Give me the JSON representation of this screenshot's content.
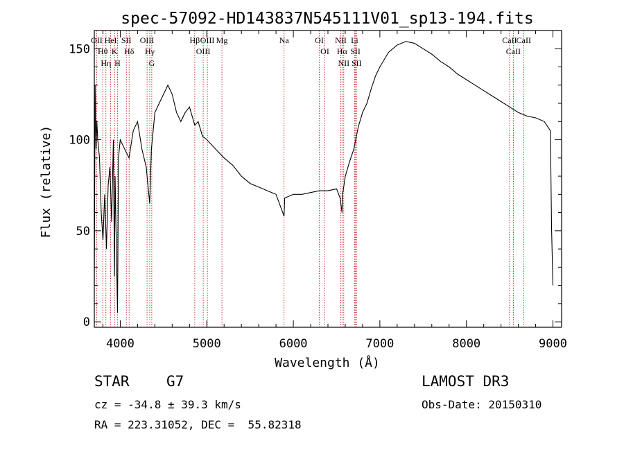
{
  "chart_data": {
    "type": "line",
    "title": "spec-57092-HD143837N545111V01_sp13-194.fits",
    "xlabel": "Wavelength (Å)",
    "ylabel": "Flux (relative)",
    "xlim": [
      3700,
      9100
    ],
    "ylim": [
      -3,
      160
    ],
    "xticks": [
      4000,
      5000,
      6000,
      7000,
      8000,
      9000
    ],
    "xtick_labels": [
      "4000",
      "5000",
      "6000",
      "7000",
      "8000",
      "9000"
    ],
    "yticks": [
      0,
      50,
      100,
      150
    ],
    "ytick_labels": [
      "0",
      "50",
      "100",
      "150"
    ],
    "series": [
      {
        "name": "flux",
        "x": [
          3700,
          3710,
          3720,
          3730,
          3740,
          3760,
          3780,
          3800,
          3820,
          3840,
          3860,
          3880,
          3900,
          3920,
          3933,
          3940,
          3968,
          3980,
          4000,
          4050,
          4101,
          4150,
          4200,
          4250,
          4300,
          4340,
          4360,
          4400,
          4450,
          4500,
          4550,
          4600,
          4650,
          4700,
          4750,
          4800,
          4861,
          4900,
          4950,
          5000,
          5100,
          5200,
          5300,
          5400,
          5500,
          5600,
          5700,
          5800,
          5893,
          5900,
          6000,
          6100,
          6200,
          6300,
          6400,
          6500,
          6540,
          6563,
          6570,
          6600,
          6650,
          6700,
          6750,
          6800,
          6850,
          6900,
          6950,
          7000,
          7050,
          7100,
          7200,
          7300,
          7400,
          7500,
          7600,
          7700,
          7800,
          7900,
          8000,
          8100,
          8200,
          8300,
          8400,
          8500,
          8600,
          8700,
          8800,
          8900,
          8970,
          8985,
          9000
        ],
        "y": [
          20,
          130,
          95,
          110,
          100,
          90,
          60,
          45,
          70,
          40,
          75,
          85,
          55,
          100,
          25,
          80,
          5,
          90,
          100,
          95,
          90,
          105,
          110,
          95,
          85,
          65,
          95,
          115,
          120,
          125,
          130,
          125,
          115,
          110,
          115,
          118,
          108,
          110,
          102,
          100,
          95,
          90,
          86,
          80,
          76,
          74,
          72,
          70,
          58,
          68,
          70,
          70,
          71,
          72,
          72,
          73,
          68,
          60,
          70,
          80,
          88,
          95,
          107,
          115,
          120,
          128,
          135,
          140,
          144,
          148,
          152,
          154,
          153,
          150,
          147,
          143,
          140,
          136,
          133,
          130,
          127,
          124,
          121,
          118,
          115,
          113,
          112,
          110,
          105,
          50,
          20
        ]
      }
    ],
    "spectral_lines": [
      {
        "label": "OII",
        "wl": 3727
      },
      {
        "label": "Hθ",
        "wl": 3798
      },
      {
        "label": "Hη",
        "wl": 3835
      },
      {
        "label": "HeI",
        "wl": 3889
      },
      {
        "label": "K",
        "wl": 3934
      },
      {
        "label": "H",
        "wl": 3968
      },
      {
        "label": "SII",
        "wl": 4070
      },
      {
        "label": "Hδ",
        "wl": 4102
      },
      {
        "label": "OIII",
        "wl": 4310
      },
      {
        "label": "Hγ",
        "wl": 4341
      },
      {
        "label": "G",
        "wl": 4364
      },
      {
        "label": "Hβ",
        "wl": 4861
      },
      {
        "label": "OIII",
        "wl": 4959
      },
      {
        "label": "OIII",
        "wl": 5007
      },
      {
        "label": "Mg",
        "wl": 5175
      },
      {
        "label": "Na",
        "wl": 5893
      },
      {
        "label": "OI",
        "wl": 6300
      },
      {
        "label": "OI",
        "wl": 6364
      },
      {
        "label": "NII",
        "wl": 6548
      },
      {
        "label": "Hα",
        "wl": 6563
      },
      {
        "label": "NII",
        "wl": 6583
      },
      {
        "label": "Li",
        "wl": 6708
      },
      {
        "label": "SII",
        "wl": 6717
      },
      {
        "label": "SII",
        "wl": 6731
      },
      {
        "label": "CaII",
        "wl": 8498
      },
      {
        "label": "CaII",
        "wl": 8542
      },
      {
        "label": "CaII",
        "wl": 8662
      }
    ]
  },
  "footer": {
    "object_type": "STAR",
    "subclass": "G7",
    "release": "LAMOST DR3",
    "redshift": "cz = -34.8 ± 39.3 km/s",
    "obs_date": "Obs-Date: 20150310",
    "coords": "RA = 223.31052, DEC =  55.82318"
  },
  "colors": {
    "axis": "#000000",
    "line_marker": "#c00000",
    "spectrum": "#000000"
  }
}
